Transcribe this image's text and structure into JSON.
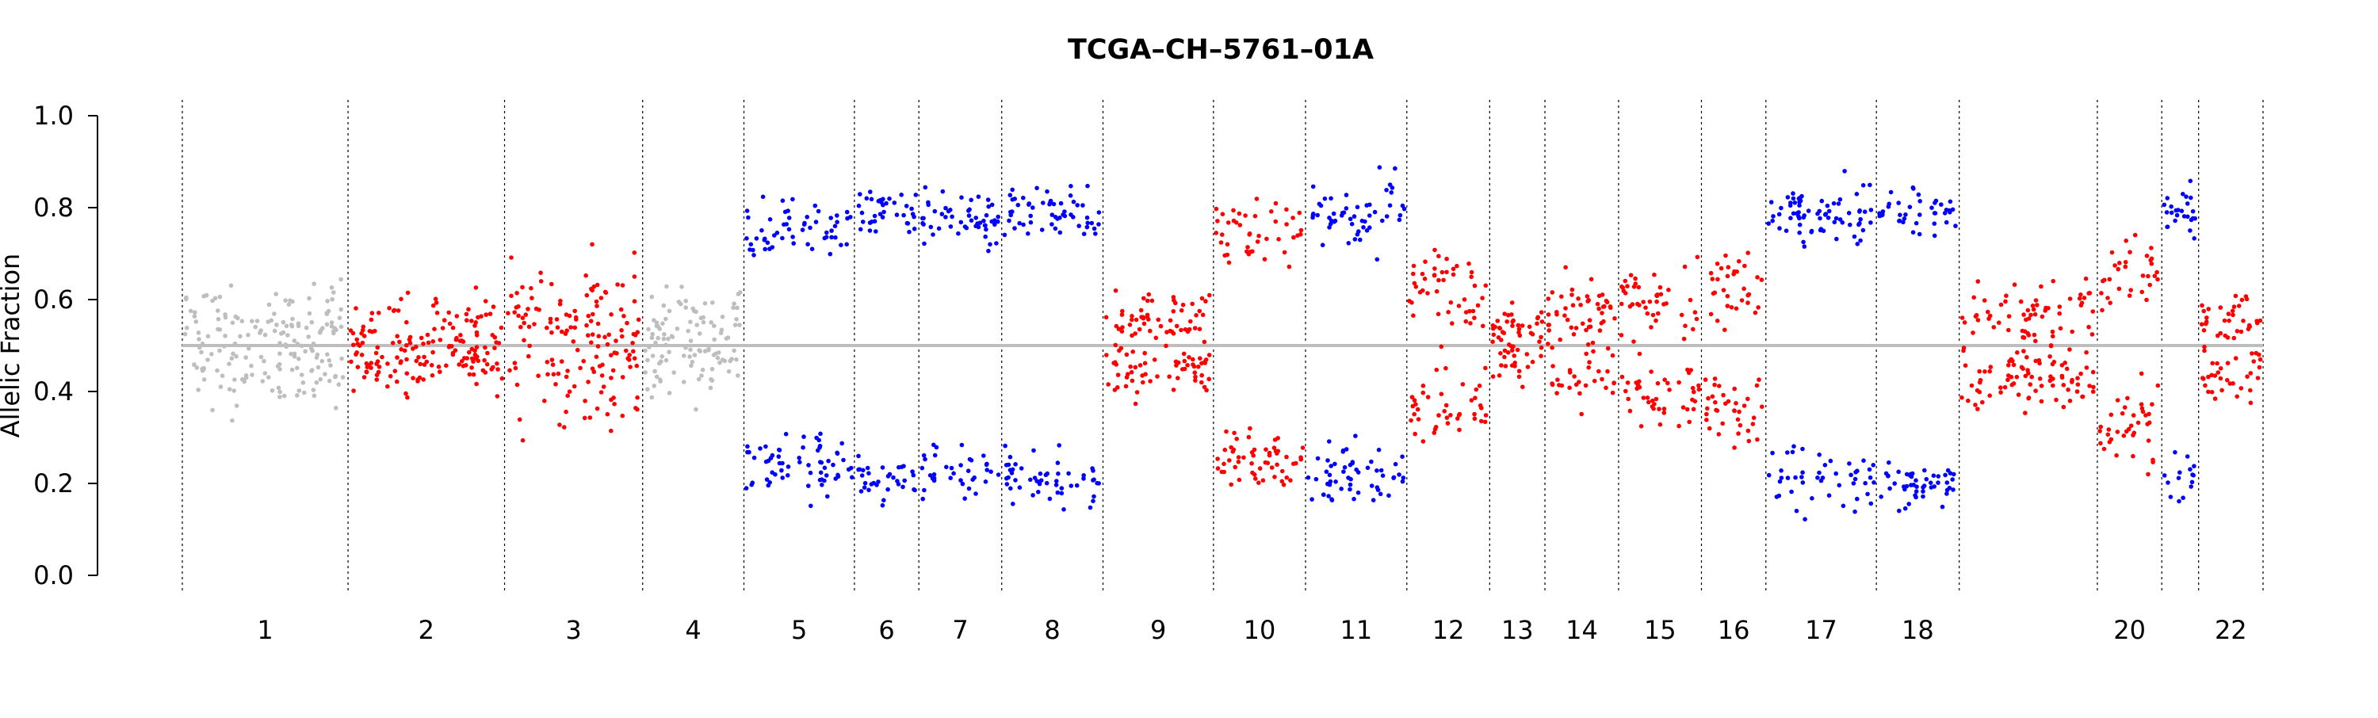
{
  "chart_data": {
    "type": "scatter",
    "title": "TCGA–CH–5761–01A",
    "xlabel": "",
    "ylabel": "Allelic Fraction",
    "ylim": [
      0.0,
      1.0
    ],
    "y_ticks": [
      "0.0",
      "0.2",
      "0.4",
      "0.6",
      "0.8",
      "1.0"
    ],
    "baseline": 0.5,
    "grid": false,
    "colors": {
      "neutral": "#bebebe",
      "imbalanced": "#ff0000",
      "loh": "#0000ff",
      "other": "#008000",
      "baseline": "#bebebe",
      "separator": "#000000"
    },
    "chromosomes": [
      {
        "label": "1",
        "points": 180,
        "state": "neutral",
        "center": 0.55,
        "spread": 0.09
      },
      {
        "label": "2",
        "points": 170,
        "state": "imbalanced",
        "center": 0.54,
        "spread": 0.07
      },
      {
        "label": "3",
        "points": 150,
        "state": "imbalanced",
        "center": 0.55,
        "spread": 0.14
      },
      {
        "label": "4",
        "points": 110,
        "state": "neutral",
        "center": 0.54,
        "spread": 0.08
      },
      {
        "label": "5",
        "points": 120,
        "state": "loh",
        "center": 0.76,
        "spread": 0.06
      },
      {
        "label": "6",
        "points": 70,
        "state": "loh",
        "center": 0.79,
        "spread": 0.05
      },
      {
        "label": "7",
        "points": 90,
        "state": "loh",
        "center": 0.78,
        "spread": 0.06
      },
      {
        "label": "8",
        "points": 110,
        "state": "loh",
        "center": 0.79,
        "spread": 0.06
      },
      {
        "label": "9",
        "points": 120,
        "state": "imbalanced",
        "center": 0.56,
        "spread": 0.06
      },
      {
        "label": "10",
        "points": 100,
        "state": "imbalanced",
        "center": 0.75,
        "spread": 0.07
      },
      {
        "label": "11",
        "points": 110,
        "state": "loh",
        "center": 0.78,
        "spread": 0.07
      },
      {
        "label": "12",
        "points": 90,
        "state": "imbalanced",
        "center": 0.63,
        "spread": 0.08
      },
      {
        "label": "13",
        "points": 60,
        "state": "imbalanced",
        "center": 0.54,
        "spread": 0.05
      },
      {
        "label": "14",
        "points": 80,
        "state": "imbalanced",
        "center": 0.57,
        "spread": 0.07
      },
      {
        "label": "15",
        "points": 90,
        "state": "imbalanced",
        "center": 0.6,
        "spread": 0.08
      },
      {
        "label": "16",
        "points": 70,
        "state": "imbalanced",
        "center": 0.64,
        "spread": 0.08
      },
      {
        "label": "17",
        "points": 120,
        "state": "loh",
        "center": 0.79,
        "spread": 0.07
      },
      {
        "label": "18",
        "points": 90,
        "state": "loh",
        "center": 0.8,
        "spread": 0.05
      },
      {
        "label": "",
        "points": 150,
        "state": "imbalanced",
        "center": 0.57,
        "spread": 0.07
      },
      {
        "label": "20",
        "points": 70,
        "state": "imbalanced",
        "center": 0.66,
        "spread": 0.09
      },
      {
        "label": "",
        "points": 40,
        "state": "loh",
        "center": 0.79,
        "spread": 0.05
      },
      {
        "label": "22",
        "points": 70,
        "state": "imbalanced",
        "center": 0.56,
        "spread": 0.06
      }
    ]
  }
}
